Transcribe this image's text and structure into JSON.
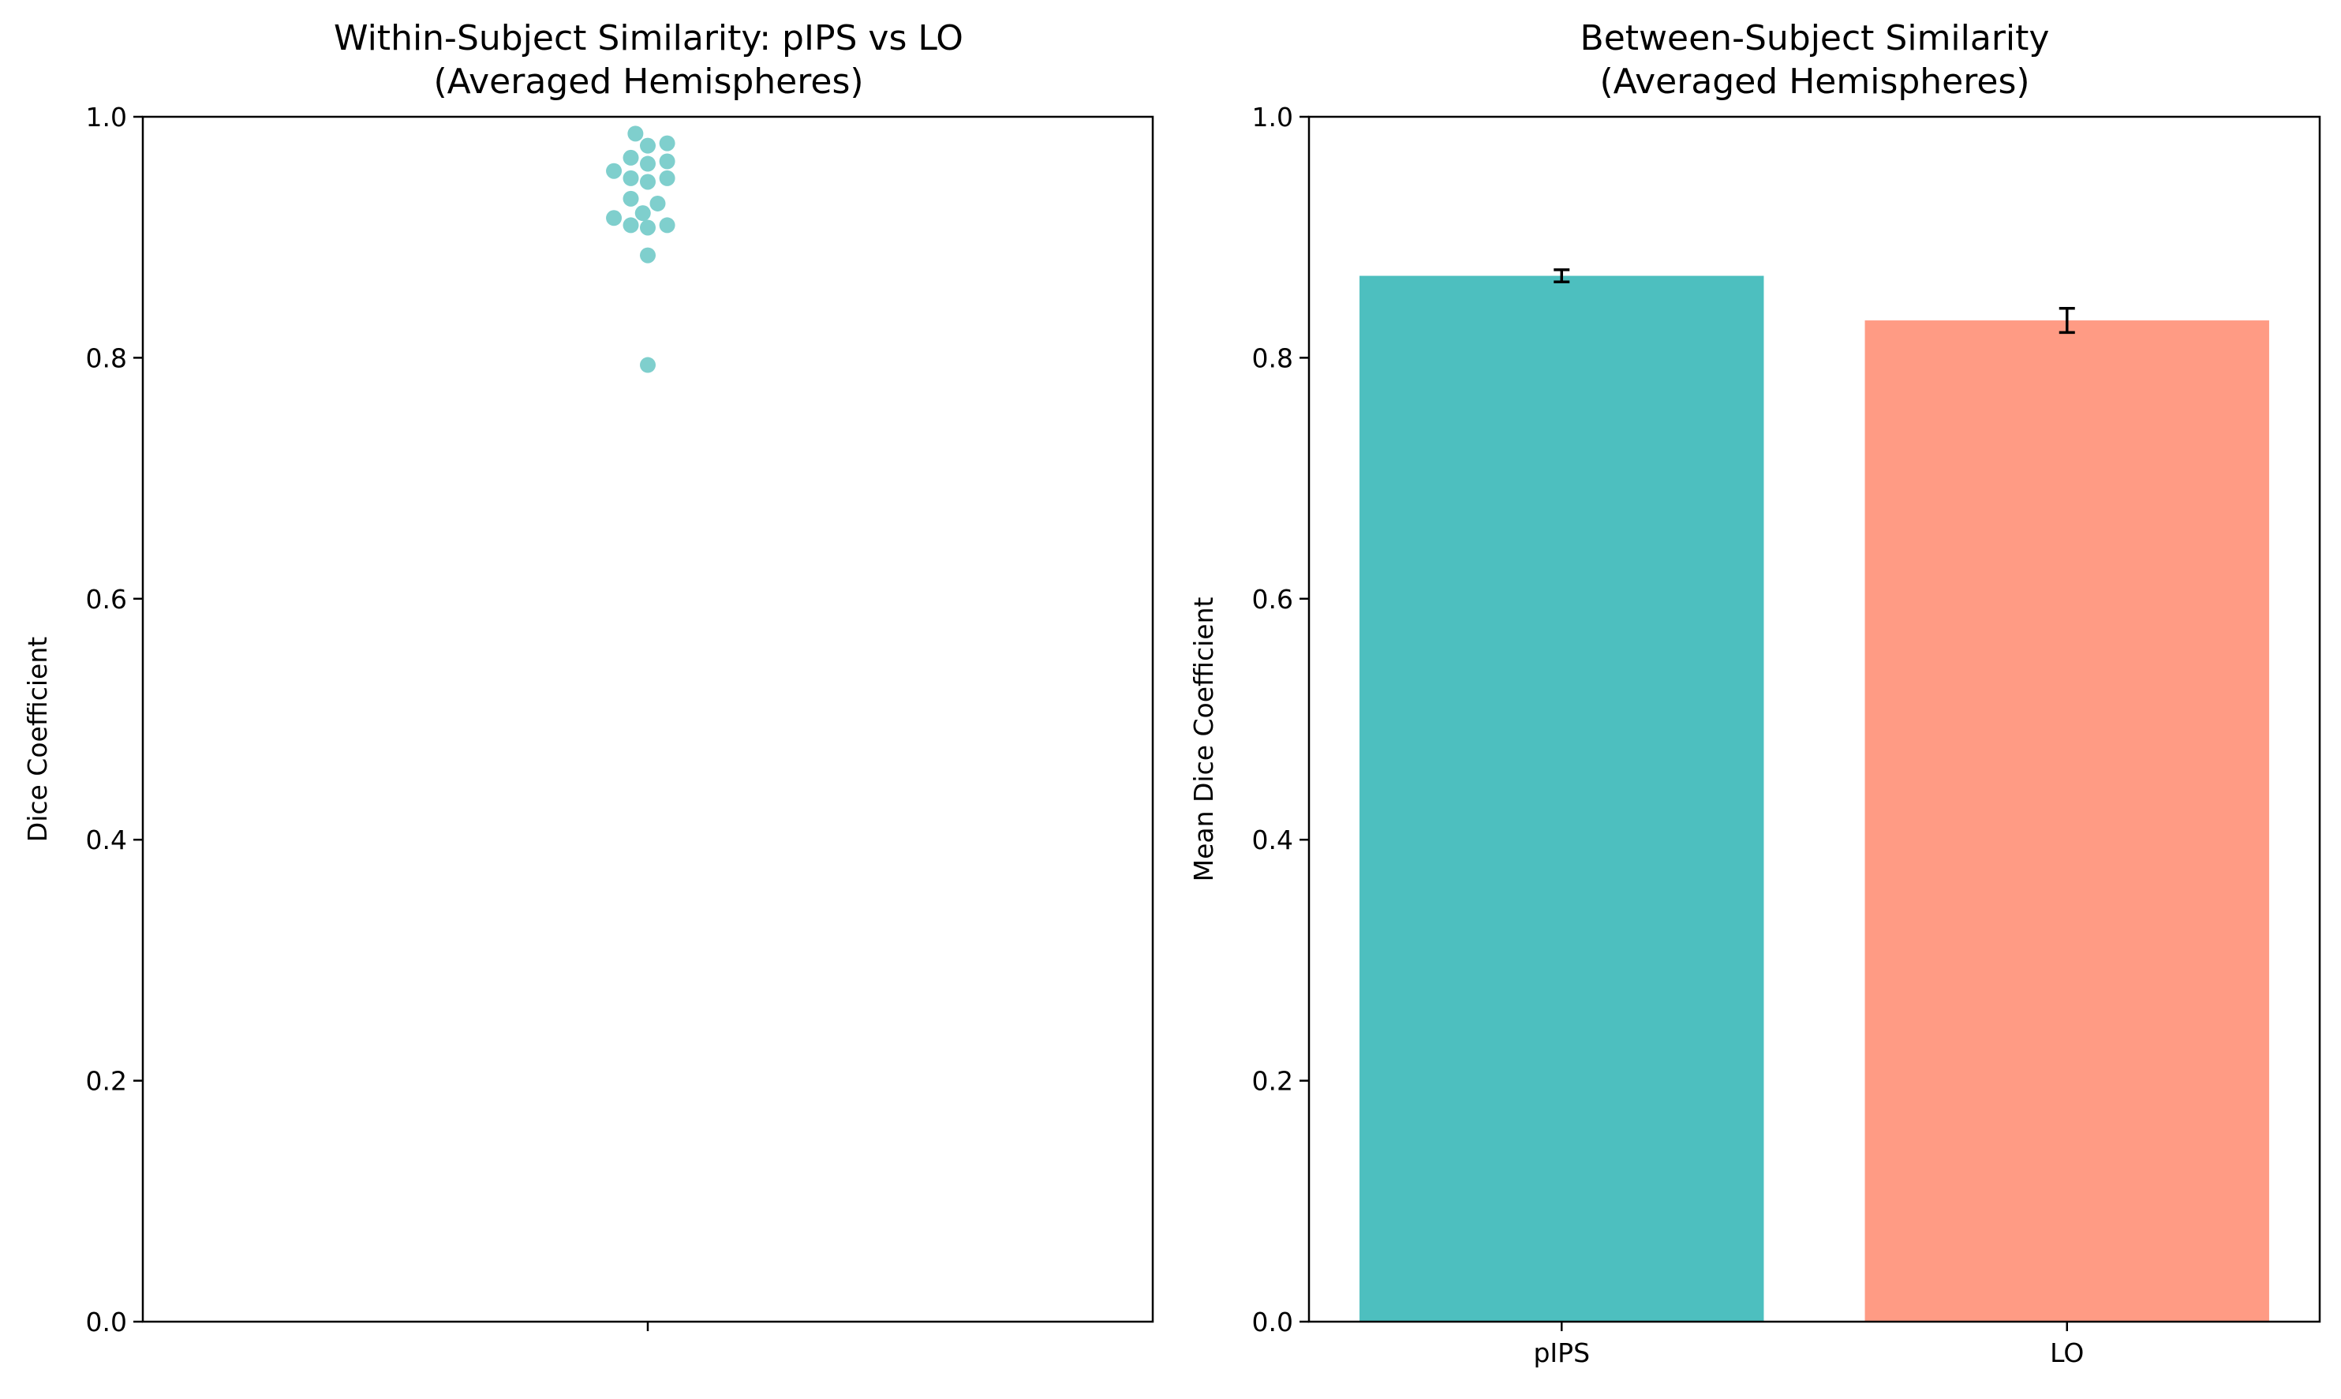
{
  "chart_data": [
    {
      "type": "scatter",
      "title": [
        "Within-Subject Similarity: pIPS vs LO",
        "(Averaged Hemispheres)"
      ],
      "xlabel": "",
      "ylabel": "Dice Coefficient",
      "ylim": [
        0.0,
        1.0
      ],
      "yticks": [
        "0.0",
        "0.2",
        "0.4",
        "0.6",
        "0.8",
        "1.0"
      ],
      "grid": false,
      "color": "#7fcfcd",
      "points": [
        {
          "offset": -0.04,
          "y": 0.986
        },
        {
          "offset": 0.0,
          "y": 0.976
        },
        {
          "offset": 0.063,
          "y": 0.978
        },
        {
          "offset": -0.055,
          "y": 0.966
        },
        {
          "offset": 0.0,
          "y": 0.961
        },
        {
          "offset": 0.063,
          "y": 0.963
        },
        {
          "offset": -0.11,
          "y": 0.955
        },
        {
          "offset": -0.055,
          "y": 0.949
        },
        {
          "offset": 0.0,
          "y": 0.946
        },
        {
          "offset": 0.063,
          "y": 0.949
        },
        {
          "offset": -0.055,
          "y": 0.932
        },
        {
          "offset": 0.032,
          "y": 0.928
        },
        {
          "offset": -0.016,
          "y": 0.92
        },
        {
          "offset": -0.11,
          "y": 0.916
        },
        {
          "offset": -0.055,
          "y": 0.91
        },
        {
          "offset": 0.0,
          "y": 0.908
        },
        {
          "offset": 0.063,
          "y": 0.91
        },
        {
          "offset": 0.0,
          "y": 0.885
        },
        {
          "offset": 0.0,
          "y": 0.794
        }
      ]
    },
    {
      "type": "bar",
      "title": [
        "Between-Subject Similarity",
        "(Averaged Hemispheres)"
      ],
      "xlabel": "",
      "ylabel": "Mean Dice Coefficient",
      "ylim": [
        0.0,
        1.0
      ],
      "yticks": [
        "0.0",
        "0.2",
        "0.4",
        "0.6",
        "0.8",
        "1.0"
      ],
      "grid": false,
      "categories": [
        "pIPS",
        "LO"
      ],
      "values": [
        0.868,
        0.831
      ],
      "errors": [
        0.005,
        0.01
      ],
      "colors": [
        "#4dbfbf",
        "#ff9b84"
      ]
    }
  ]
}
